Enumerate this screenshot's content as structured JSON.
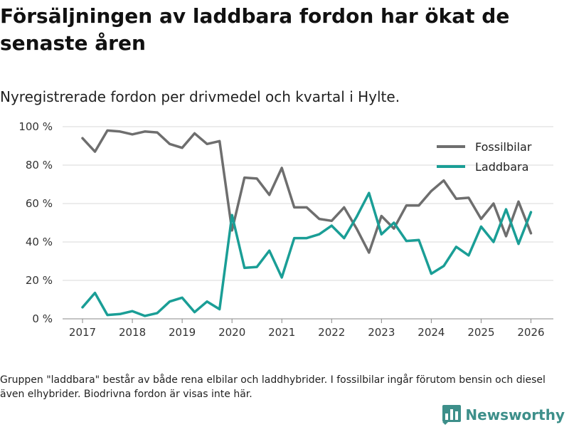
{
  "title": "Försäljningen av laddbara fordon har ökat de senaste åren",
  "subtitle": "Nyregistrerade fordon per drivmedel och kvartal i Hylte.",
  "footnote": "Gruppen \"laddbara\" består av både rena elbilar och laddhybrider. I fossilbilar ingår förutom bensin och diesel även elhybrider. Biodrivna fordon är visas inte här.",
  "brand": "Newsworthy",
  "colors": {
    "fossil": "#6e6e6e",
    "laddbara": "#1a9e96",
    "grid": "#d9d9d9",
    "brand": "#3d8f8a"
  },
  "chart_data": {
    "type": "line",
    "title": "Försäljningen av laddbara fordon har ökat de senaste åren",
    "xlabel": "",
    "ylabel": "",
    "xlim": [
      2016.6,
      2026.45
    ],
    "ylim": [
      0,
      100
    ],
    "y_ticks": [
      0,
      20,
      40,
      60,
      80,
      100
    ],
    "y_tick_labels": [
      "0 %",
      "20 %",
      "40 %",
      "60 %",
      "80 %",
      "100 %"
    ],
    "x_ticks": [
      2017,
      2018,
      2019,
      2020,
      2021,
      2022,
      2023,
      2024,
      2025,
      2026
    ],
    "x_tick_labels": [
      "2017",
      "2018",
      "2019",
      "2020",
      "2021",
      "2022",
      "2023",
      "2024",
      "2025",
      "2026"
    ],
    "legend_position": "top-right",
    "x": [
      2017,
      2017.25,
      2017.5,
      2017.75,
      2018,
      2018.25,
      2018.5,
      2018.75,
      2019,
      2019.25,
      2019.5,
      2019.75,
      2020,
      2020.25,
      2020.5,
      2020.75,
      2021,
      2021.25,
      2021.5,
      2021.75,
      2022,
      2022.25,
      2022.5,
      2022.75,
      2023,
      2023.25,
      2023.5,
      2023.75,
      2024,
      2024.25,
      2024.5,
      2024.75,
      2025,
      2025.25,
      2025.5,
      2025.75,
      2026
    ],
    "series": [
      {
        "name": "Fossilbilar",
        "color": "#6e6e6e",
        "values": [
          94,
          87,
          98,
          97.5,
          96,
          97.5,
          97,
          91,
          89,
          96.5,
          91,
          92.5,
          46,
          73.5,
          73,
          64.5,
          78.5,
          58,
          58,
          52,
          51,
          58,
          47,
          34.5,
          53.5,
          47,
          59,
          59,
          66.5,
          72,
          62.5,
          63,
          52,
          60,
          43,
          61,
          44.5
        ]
      },
      {
        "name": "Laddbara",
        "color": "#1a9e96",
        "values": [
          6,
          13.5,
          2,
          2.5,
          4,
          1.5,
          3,
          9,
          11,
          3.5,
          9,
          5,
          54,
          26.5,
          27,
          35.5,
          21.5,
          42,
          42,
          44,
          48.5,
          42,
          53,
          65.5,
          44,
          50,
          40.5,
          41,
          23.5,
          27.5,
          37.5,
          33,
          48,
          40,
          57,
          39,
          55.5
        ]
      }
    ]
  }
}
